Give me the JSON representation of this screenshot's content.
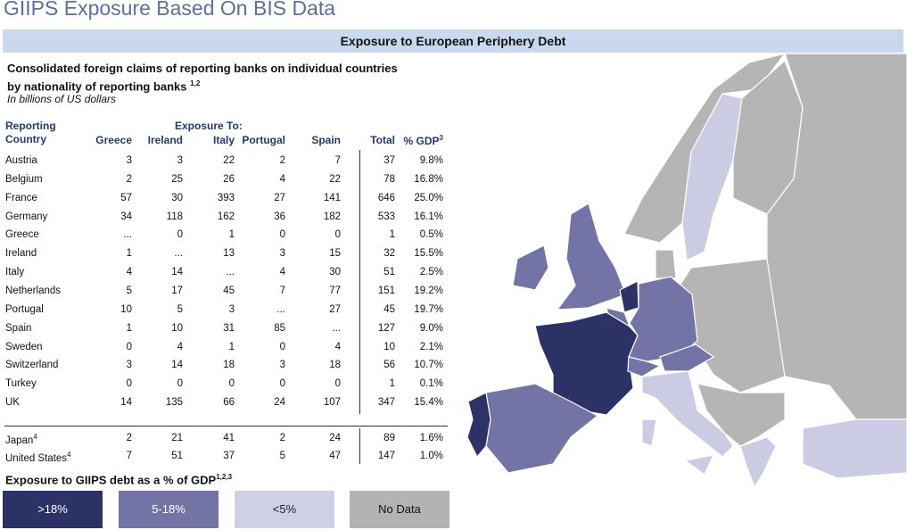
{
  "header": {
    "title": "GIIPS Exposure Based On BIS Data",
    "banner": "Exposure to European Periphery Debt"
  },
  "intro": {
    "text": "Consolidated foreign claims of reporting banks on individual countries by nationality of reporting banks",
    "note": "1,2",
    "units": "In billions of US dollars"
  },
  "table": {
    "row_label": "Reporting Country",
    "group_label": "Exposure To:",
    "columns": [
      "Greece",
      "Ireland",
      "Italy",
      "Portugal",
      "Spain",
      "Total",
      "% GDP"
    ],
    "gdp_note": "3",
    "rows": [
      {
        "country": "Austria",
        "values": [
          3,
          3,
          22,
          2,
          7,
          37,
          "9.8%"
        ]
      },
      {
        "country": "Belgium",
        "values": [
          2,
          25,
          26,
          4,
          22,
          78,
          "16.8%"
        ]
      },
      {
        "country": "France",
        "values": [
          57,
          30,
          393,
          27,
          141,
          646,
          "25.0%"
        ]
      },
      {
        "country": "Germany",
        "values": [
          34,
          118,
          162,
          36,
          182,
          533,
          "16.1%"
        ]
      },
      {
        "country": "Greece",
        "values": [
          "...",
          0,
          1,
          0,
          0,
          1,
          "0.5%"
        ]
      },
      {
        "country": "Ireland",
        "values": [
          1,
          "...",
          13,
          3,
          15,
          32,
          "15.5%"
        ]
      },
      {
        "country": "Italy",
        "values": [
          4,
          14,
          "...",
          4,
          30,
          51,
          "2.5%"
        ]
      },
      {
        "country": "Netherlands",
        "values": [
          5,
          17,
          45,
          7,
          77,
          151,
          "19.2%"
        ]
      },
      {
        "country": "Portugal",
        "values": [
          10,
          5,
          3,
          "...",
          27,
          45,
          "19.7%"
        ]
      },
      {
        "country": "Spain",
        "values": [
          1,
          10,
          31,
          85,
          "...",
          127,
          "9.0%"
        ]
      },
      {
        "country": "Sweden",
        "values": [
          0,
          4,
          1,
          0,
          4,
          10,
          "2.1%"
        ]
      },
      {
        "country": "Switzerland",
        "values": [
          3,
          14,
          18,
          3,
          18,
          56,
          "10.7%"
        ]
      },
      {
        "country": "Turkey",
        "values": [
          0,
          0,
          0,
          0,
          0,
          1,
          "0.1%"
        ]
      },
      {
        "country": "UK",
        "values": [
          14,
          135,
          66,
          24,
          107,
          347,
          "15.4%"
        ]
      }
    ],
    "other_rows": [
      {
        "country": "Japan",
        "note": "4",
        "values": [
          2,
          21,
          41,
          2,
          24,
          89,
          "1.6%"
        ]
      },
      {
        "country": "United States",
        "note": "4",
        "values": [
          7,
          51,
          37,
          5,
          47,
          147,
          "1.0%"
        ]
      }
    ]
  },
  "legend": {
    "title": "Exposure to GIIPS debt as a % of GDP",
    "note": "1,2,3",
    "items": [
      ">18%",
      "5-18%",
      "<5%",
      "No Data"
    ]
  }
}
